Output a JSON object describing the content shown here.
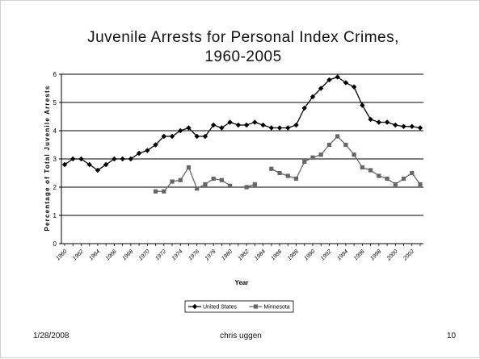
{
  "chart_data": {
    "type": "line",
    "title_line1": "Juvenile Arrests for Personal Index Crimes,",
    "title_line2": "1960-2005",
    "xlabel": "Year",
    "ylabel": "Percentage of Total Juvenile Arrests",
    "ylim": [
      0,
      6
    ],
    "yticks": [
      "0",
      "1",
      "2",
      "3",
      "4",
      "5",
      "6"
    ],
    "grid": "horizontal",
    "legend_position": "bottom-center",
    "x_tick_labels": [
      "1960",
      "1962",
      "1964",
      "1966",
      "1968",
      "1970",
      "1972",
      "1974",
      "1976",
      "1978",
      "1980",
      "1982",
      "1984",
      "1986",
      "1988",
      "1990",
      "1992",
      "1994",
      "1996",
      "1998",
      "2000",
      "2002"
    ],
    "years": [
      1960,
      1961,
      1962,
      1963,
      1964,
      1965,
      1966,
      1967,
      1968,
      1969,
      1970,
      1971,
      1972,
      1973,
      1974,
      1975,
      1976,
      1977,
      1978,
      1979,
      1980,
      1981,
      1982,
      1983,
      1984,
      1985,
      1986,
      1987,
      1988,
      1989,
      1990,
      1991,
      1992,
      1993,
      1994,
      1995,
      1996,
      1997,
      1998,
      1999,
      2000,
      2001,
      2002,
      2003
    ],
    "series": [
      {
        "name": "United States",
        "color": "#000000",
        "marker": "diamond",
        "values": [
          2.8,
          3.0,
          3.0,
          2.8,
          2.6,
          2.8,
          3.0,
          3.0,
          3.0,
          3.2,
          3.3,
          3.5,
          3.8,
          3.8,
          4.0,
          4.1,
          3.8,
          3.8,
          4.2,
          4.1,
          4.3,
          4.2,
          4.2,
          4.3,
          4.2,
          4.1,
          4.1,
          4.1,
          4.2,
          4.8,
          5.2,
          5.5,
          5.8,
          5.9,
          5.7,
          5.55,
          4.9,
          4.4,
          4.3,
          4.3,
          4.2,
          4.15,
          4.15,
          4.1
        ]
      },
      {
        "name": "Minnesota",
        "color": "#666666",
        "marker": "square",
        "values": [
          null,
          null,
          null,
          null,
          null,
          null,
          null,
          null,
          null,
          null,
          null,
          1.85,
          1.85,
          2.2,
          2.25,
          2.7,
          1.95,
          2.1,
          2.3,
          2.25,
          2.05,
          null,
          2.0,
          2.1,
          null,
          2.65,
          2.5,
          2.4,
          2.3,
          2.9,
          3.05,
          3.15,
          3.5,
          3.8,
          3.5,
          3.15,
          2.7,
          2.6,
          2.4,
          2.3,
          2.1,
          2.3,
          2.5,
          2.1
        ]
      }
    ]
  },
  "footer": {
    "date": "1/28/2008",
    "author": "chris uggen",
    "page": "10"
  }
}
